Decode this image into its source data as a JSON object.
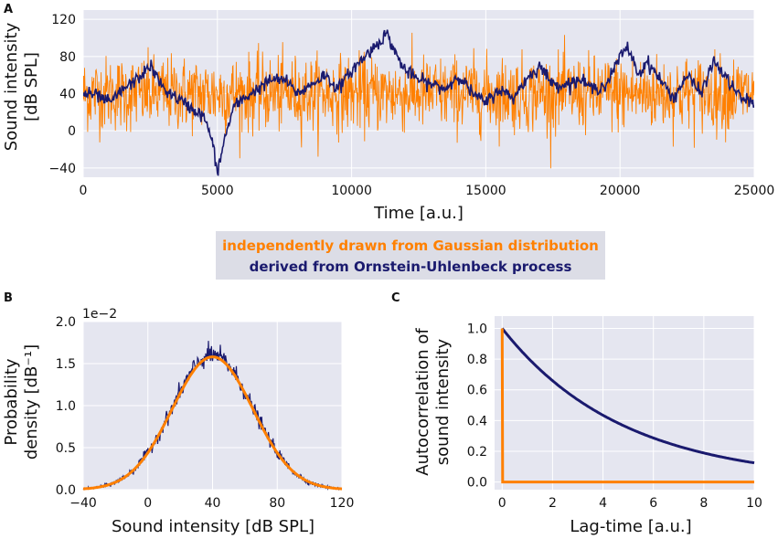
{
  "colors": {
    "orange": "#ff8000",
    "navy": "#1a1a6e",
    "panel_bg": "#e5e6f0",
    "legend_bg": "#dcdde6"
  },
  "legend": {
    "gaussian": "independently drawn from Gaussian distribution",
    "ou": "derived from Ornstein-Uhlenbeck process"
  },
  "chart_data": [
    {
      "panel": "A",
      "type": "line",
      "xlabel": "Time [a.u.]",
      "ylabel_line1": "Sound intensity",
      "ylabel_line2": "[dB SPL]",
      "xlim": [
        0,
        25000
      ],
      "ylim": [
        -50,
        130
      ],
      "xticks": [
        "0",
        "5000",
        "10000",
        "15000",
        "20000",
        "25000"
      ],
      "xtick_values": [
        0,
        5000,
        10000,
        15000,
        20000,
        25000
      ],
      "yticks": [
        "−40",
        "0",
        "40",
        "80",
        "120"
      ],
      "ytick_values": [
        -40,
        0,
        40,
        80,
        120
      ],
      "series": [
        {
          "name": "independently drawn from Gaussian distribution",
          "kind": "gaussian-noise",
          "mean": 40,
          "sd": 20
        },
        {
          "name": "derived from Ornstein-Uhlenbeck process",
          "x": [
            0,
            500,
            1000,
            1500,
            2000,
            2500,
            3000,
            3500,
            4000,
            4500,
            4800,
            5000,
            5300,
            5600,
            6000,
            6500,
            7000,
            7500,
            8000,
            8500,
            9000,
            9500,
            10000,
            10500,
            11000,
            11300,
            11700,
            12000,
            12500,
            13000,
            13500,
            14000,
            14500,
            15000,
            15500,
            16000,
            16500,
            17000,
            17500,
            18000,
            18500,
            19000,
            19500,
            20000,
            20300,
            20700,
            21000,
            21500,
            22000,
            22500,
            23000,
            23500,
            24000,
            24500,
            25000
          ],
          "y": [
            40,
            38,
            30,
            45,
            55,
            70,
            45,
            35,
            25,
            15,
            -10,
            -45,
            -5,
            25,
            35,
            45,
            55,
            55,
            40,
            50,
            60,
            45,
            65,
            80,
            95,
            105,
            80,
            65,
            55,
            50,
            45,
            60,
            40,
            30,
            45,
            35,
            55,
            70,
            50,
            50,
            55,
            45,
            50,
            80,
            90,
            60,
            75,
            55,
            35,
            60,
            40,
            75,
            55,
            35,
            30
          ]
        }
      ]
    },
    {
      "panel": "B",
      "type": "line",
      "xlabel": "Sound intensity [dB SPL]",
      "ylabel_line1": "Probability",
      "ylabel_line2": "density [dB⁻¹]",
      "scale_note": "1e−2",
      "xlim": [
        -40,
        120
      ],
      "ylim": [
        0,
        2.0
      ],
      "xticks": [
        "−40",
        "0",
        "40",
        "80",
        "120"
      ],
      "xtick_values": [
        -40,
        0,
        40,
        80,
        120
      ],
      "yticks": [
        "0.0",
        "0.5",
        "1.0",
        "1.5",
        "2.0"
      ],
      "ytick_values": [
        0,
        0.5,
        1.0,
        1.5,
        2.0
      ],
      "series": [
        {
          "name": "derived from Ornstein-Uhlenbeck process",
          "kind": "gaussian-pdf",
          "mean": 40,
          "sd": 25,
          "peak": 1.6,
          "noise": 0.06
        },
        {
          "name": "independently drawn from Gaussian distribution",
          "kind": "gaussian-pdf",
          "mean": 40,
          "sd": 25,
          "peak": 1.58,
          "noise": 0
        }
      ]
    },
    {
      "panel": "C",
      "type": "line",
      "xlabel": "Lag-time [a.u.]",
      "ylabel_line1": "Autocorrelation of",
      "ylabel_line2": "sound intensity",
      "xlim": [
        -0.3,
        10
      ],
      "ylim": [
        -0.05,
        1.08
      ],
      "xticks": [
        "0",
        "2",
        "4",
        "6",
        "8",
        "10"
      ],
      "xtick_values": [
        0,
        2,
        4,
        6,
        8,
        10
      ],
      "yticks": [
        "0.0",
        "0.2",
        "0.4",
        "0.6",
        "0.8",
        "1.0"
      ],
      "ytick_values": [
        0,
        0.2,
        0.4,
        0.6,
        0.8,
        1.0
      ],
      "series": [
        {
          "name": "derived from Ornstein-Uhlenbeck process",
          "kind": "exp-decay",
          "tau": 4.8
        },
        {
          "name": "independently drawn from Gaussian distribution",
          "x": [
            0,
            0.02,
            0.04,
            10
          ],
          "y": [
            1.0,
            0.0,
            0.0,
            0.0
          ]
        }
      ]
    }
  ]
}
